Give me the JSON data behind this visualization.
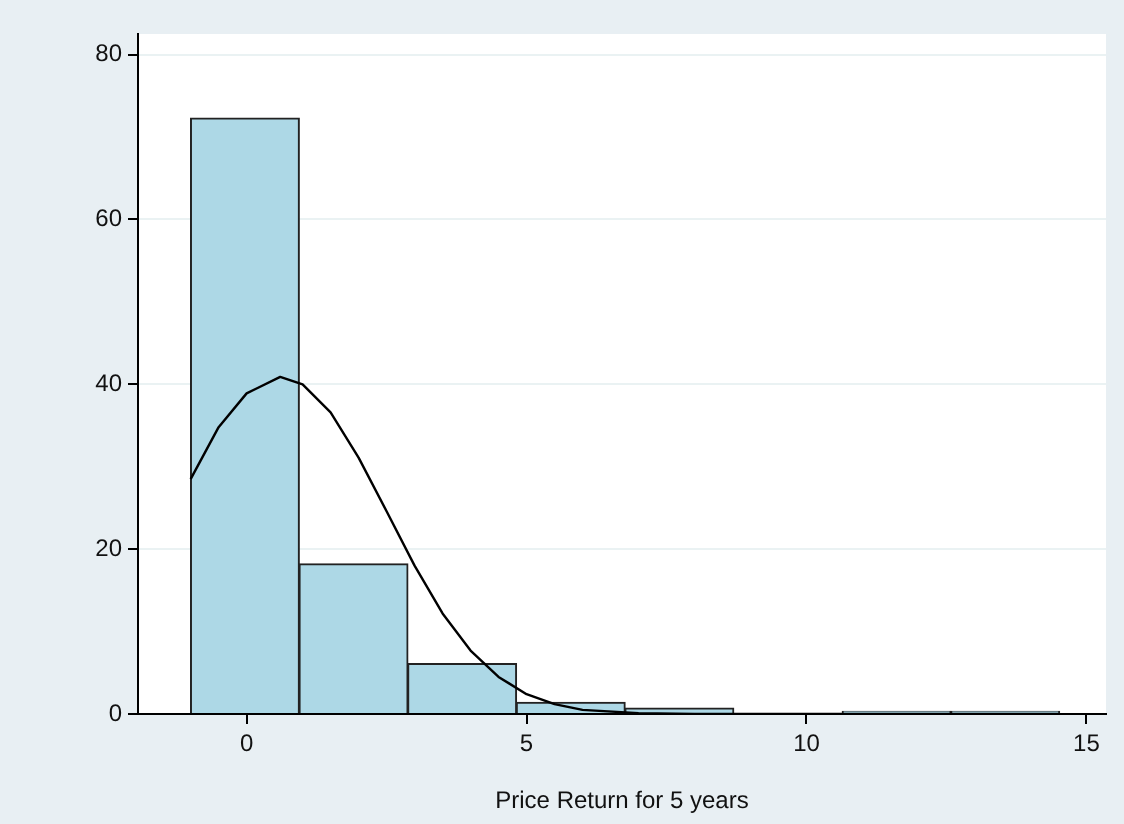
{
  "chart_data": {
    "type": "histogram",
    "xlabel": "Price Return for 5 years",
    "bins": [
      -1.0,
      0.94,
      2.88,
      4.82,
      6.76,
      8.7,
      10.64,
      12.58,
      14.52
    ],
    "values": [
      72.3,
      18.2,
      6.1,
      1.4,
      0.7,
      0,
      0.3,
      0.3
    ],
    "color": "#add8e6",
    "series": [
      {
        "type": "line",
        "color": "#000000",
        "marker": "none",
        "x": [
          -1,
          -0.5,
          0,
          0.6,
          1,
          1.5,
          2,
          2.5,
          3,
          3.5,
          4,
          4.5,
          5,
          5.5,
          6,
          7,
          8,
          10,
          14.5
        ],
        "values": [
          28.5,
          34.8,
          38.9,
          40.9,
          40.0,
          36.6,
          31.1,
          24.6,
          18.0,
          12.2,
          7.7,
          4.5,
          2.4,
          1.2,
          0.5,
          0.1,
          0,
          0,
          0
        ]
      }
    ],
    "xlim": [
      -1.94,
      15.35
    ],
    "xticks": [
      0,
      5,
      10,
      15
    ],
    "ylim": [
      0,
      82.5
    ],
    "yticks": [
      0,
      20,
      40,
      60,
      80
    ],
    "grid": "y",
    "legend": false
  }
}
